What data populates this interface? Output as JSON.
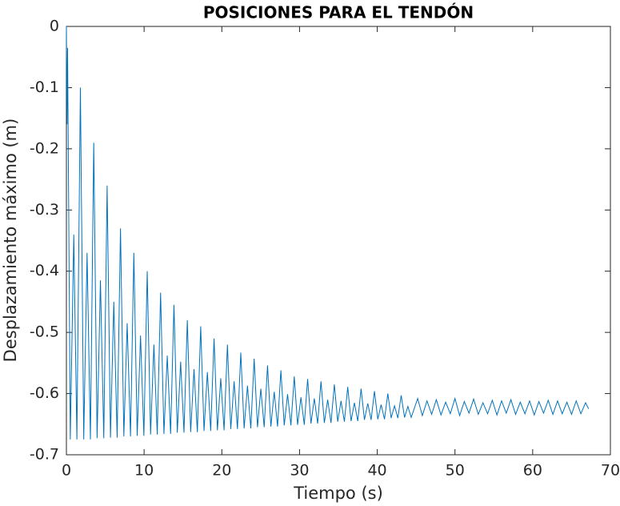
{
  "chart_data": {
    "type": "line",
    "title": "POSICIONES PARA EL TENDÓN",
    "xlabel": "Tiempo (s)",
    "ylabel": "Desplazamiento máximo (m)",
    "color": "#0072bd",
    "xlim": [
      0,
      70
    ],
    "ylim": [
      -0.7,
      0
    ],
    "xticks": [
      0,
      10,
      20,
      30,
      40,
      50,
      60,
      70
    ],
    "yticks": [
      0,
      -0.1,
      -0.2,
      -0.3,
      -0.4,
      -0.5,
      -0.6,
      -0.7
    ],
    "box": true,
    "x": [
      0,
      0.08,
      0.15,
      0.5,
      0.95,
      1.35,
      1.8,
      2.23,
      2.66,
      3.09,
      3.52,
      3.95,
      4.38,
      4.81,
      5.24,
      5.67,
      6.1,
      6.53,
      6.96,
      7.39,
      7.82,
      8.25,
      8.68,
      9.11,
      9.54,
      9.97,
      10.4,
      10.83,
      11.26,
      11.69,
      12.12,
      12.55,
      12.98,
      13.41,
      13.84,
      14.27,
      14.7,
      15.13,
      15.56,
      15.99,
      16.42,
      16.85,
      17.28,
      17.71,
      18.14,
      18.57,
      19.0,
      19.43,
      19.86,
      20.29,
      20.72,
      21.15,
      21.58,
      22.01,
      22.44,
      22.87,
      23.3,
      23.73,
      24.16,
      24.59,
      25.02,
      25.45,
      25.88,
      26.31,
      26.74,
      27.17,
      27.6,
      28.03,
      28.46,
      28.89,
      29.32,
      29.75,
      30.18,
      30.61,
      31.04,
      31.47,
      31.9,
      32.33,
      32.76,
      33.19,
      33.62,
      34.05,
      34.48,
      34.91,
      35.34,
      35.77,
      36.2,
      36.63,
      37.06,
      37.49,
      37.92,
      38.35,
      38.78,
      39.21,
      39.64,
      40.07,
      40.5,
      40.93,
      41.36,
      41.79,
      42.22,
      42.65,
      43.08,
      43.51,
      43.94,
      44.37,
      45.2,
      45.8,
      46.4,
      47.0,
      47.6,
      48.2,
      48.8,
      49.4,
      50.0,
      50.6,
      51.2,
      51.8,
      52.4,
      53.0,
      53.6,
      54.2,
      54.8,
      55.4,
      56.0,
      56.6,
      57.2,
      57.8,
      58.4,
      59.0,
      59.6,
      60.2,
      60.8,
      61.4,
      62.0,
      62.6,
      63.2,
      63.8,
      64.4,
      65.0,
      65.6,
      66.2,
      66.8,
      67.2
    ],
    "values": [
      0,
      -0.16,
      -0.035,
      -0.675,
      -0.34,
      -0.675,
      -0.1,
      -0.675,
      -0.37,
      -0.675,
      -0.19,
      -0.673,
      -0.415,
      -0.673,
      -0.26,
      -0.672,
      -0.45,
      -0.672,
      -0.33,
      -0.67,
      -0.485,
      -0.67,
      -0.37,
      -0.669,
      -0.505,
      -0.669,
      -0.4,
      -0.667,
      -0.52,
      -0.667,
      -0.435,
      -0.666,
      -0.538,
      -0.666,
      -0.455,
      -0.664,
      -0.548,
      -0.664,
      -0.48,
      -0.663,
      -0.56,
      -0.663,
      -0.49,
      -0.661,
      -0.565,
      -0.661,
      -0.51,
      -0.66,
      -0.575,
      -0.66,
      -0.52,
      -0.658,
      -0.58,
      -0.658,
      -0.533,
      -0.657,
      -0.587,
      -0.657,
      -0.543,
      -0.655,
      -0.592,
      -0.655,
      -0.554,
      -0.654,
      -0.597,
      -0.654,
      -0.562,
      -0.652,
      -0.601,
      -0.652,
      -0.572,
      -0.651,
      -0.606,
      -0.651,
      -0.576,
      -0.649,
      -0.608,
      -0.649,
      -0.58,
      -0.648,
      -0.61,
      -0.648,
      -0.585,
      -0.646,
      -0.612,
      -0.646,
      -0.589,
      -0.645,
      -0.615,
      -0.645,
      -0.592,
      -0.643,
      -0.616,
      -0.643,
      -0.596,
      -0.642,
      -0.618,
      -0.642,
      -0.6,
      -0.64,
      -0.62,
      -0.64,
      -0.603,
      -0.639,
      -0.621,
      -0.639,
      -0.608,
      -0.636,
      -0.612,
      -0.634,
      -0.61,
      -0.635,
      -0.614,
      -0.633,
      -0.608,
      -0.636,
      -0.613,
      -0.632,
      -0.609,
      -0.634,
      -0.615,
      -0.633,
      -0.611,
      -0.635,
      -0.612,
      -0.632,
      -0.61,
      -0.634,
      -0.614,
      -0.633,
      -0.612,
      -0.635,
      -0.613,
      -0.632,
      -0.611,
      -0.634,
      -0.612,
      -0.633,
      -0.614,
      -0.634,
      -0.612,
      -0.633,
      -0.615,
      -0.625
    ]
  }
}
